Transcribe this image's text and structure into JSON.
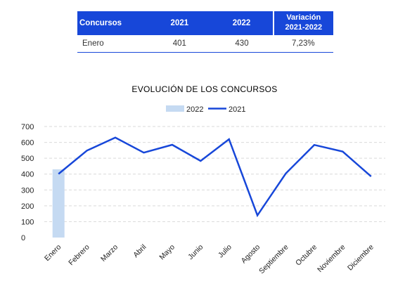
{
  "table": {
    "headers": [
      "Concursos",
      "2021",
      "2022",
      "Variación",
      "2021-2022"
    ],
    "rows": [
      {
        "label": "Enero",
        "v2021": "401",
        "v2022": "430",
        "variation": "7,23%"
      }
    ]
  },
  "colors": {
    "accent": "#1747d9",
    "bar": "#c5daf2",
    "line": "#1747d9",
    "grid": "#d9d9d9"
  },
  "chart_data": {
    "type": "bar+line",
    "title": "EVOLUCIÓN DE LOS CONCURSOS",
    "legend_position": "top-center",
    "categories": [
      "Enero",
      "Febrero",
      "Marzo",
      "Abril",
      "Mayo",
      "Junio",
      "Julio",
      "Agosto",
      "Septiembre",
      "Octubre",
      "Noviembre",
      "Diciembre"
    ],
    "series": [
      {
        "name": "2022",
        "type": "bar",
        "values": [
          430,
          null,
          null,
          null,
          null,
          null,
          null,
          null,
          null,
          null,
          null,
          null
        ]
      },
      {
        "name": "2021",
        "type": "line",
        "values": [
          401,
          548,
          630,
          535,
          585,
          483,
          620,
          140,
          404,
          584,
          542,
          385
        ]
      }
    ],
    "ylim": [
      0,
      700
    ],
    "yticks": [
      "0",
      "100",
      "200",
      "300",
      "400",
      "500",
      "600",
      "700"
    ],
    "grid": true
  }
}
